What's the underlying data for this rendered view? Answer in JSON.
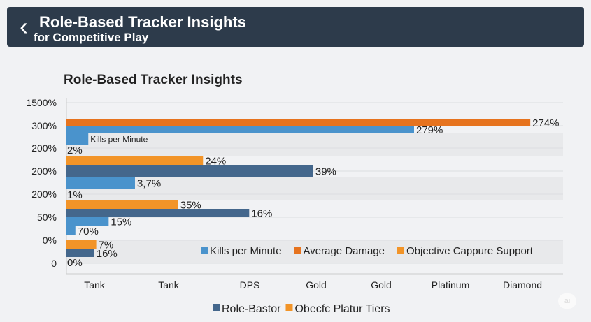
{
  "header": {
    "back_icon": "chevron-left-icon",
    "title": "Role-Based Tracker Insights",
    "subtitle": "for Competitive Play"
  },
  "chart_data": {
    "type": "bar",
    "orientation": "horizontal",
    "title": "Role-Based Tracker Insights",
    "y_tick_labels": [
      "1500%",
      "300%",
      "200%",
      "200%",
      "200%",
      "50%",
      "0%",
      "0"
    ],
    "x_tick_labels": [
      "Tank",
      "Tank",
      "DPS",
      "Gold",
      "Gold",
      "Platinum",
      "Diamond"
    ],
    "colors": {
      "kills": "#4a93cc",
      "damage": "#e6731e",
      "objective": "#f29428",
      "role": "#44678c"
    },
    "bars": [
      {
        "series": "damage",
        "value": 0.934,
        "label": "274%"
      },
      {
        "series": "kills",
        "value": 0.7,
        "label": "279%"
      },
      {
        "series": "kills",
        "value": 0.044,
        "label": "Kills per Minute"
      },
      {
        "series": null,
        "value": 0,
        "label": "2%"
      },
      {
        "series": "objective",
        "value": 0.275,
        "label": "24%"
      },
      {
        "series": "role",
        "value": 0.497,
        "label": "39%"
      },
      {
        "series": "kills",
        "value": 0.138,
        "label": "3,7%"
      },
      {
        "series": null,
        "value": 0,
        "label": "1%"
      },
      {
        "series": "objective",
        "value": 0.225,
        "label": "35%"
      },
      {
        "series": "role",
        "value": 0.368,
        "label": "16%"
      },
      {
        "series": "kills",
        "value": 0.085,
        "label": "15%"
      },
      {
        "series": "kills",
        "value": 0.018,
        "label": "70%"
      },
      {
        "series": "objective",
        "value": 0.06,
        "label": "7%"
      },
      {
        "series": "role",
        "value": 0.056,
        "label": "16%"
      },
      {
        "series": null,
        "value": 0,
        "label": "0%"
      }
    ],
    "legend": [
      {
        "series": "kills",
        "label": "Kills per Minute"
      },
      {
        "series": "damage",
        "label": "Average Damage"
      },
      {
        "series": "objective",
        "label": "Objective Cappure Support"
      }
    ],
    "legend_bottom": [
      {
        "series": "role",
        "label": "Role-Bastor"
      },
      {
        "series": "objective",
        "label": "Obecfc Platur Tiers"
      }
    ]
  },
  "badge": "ai"
}
